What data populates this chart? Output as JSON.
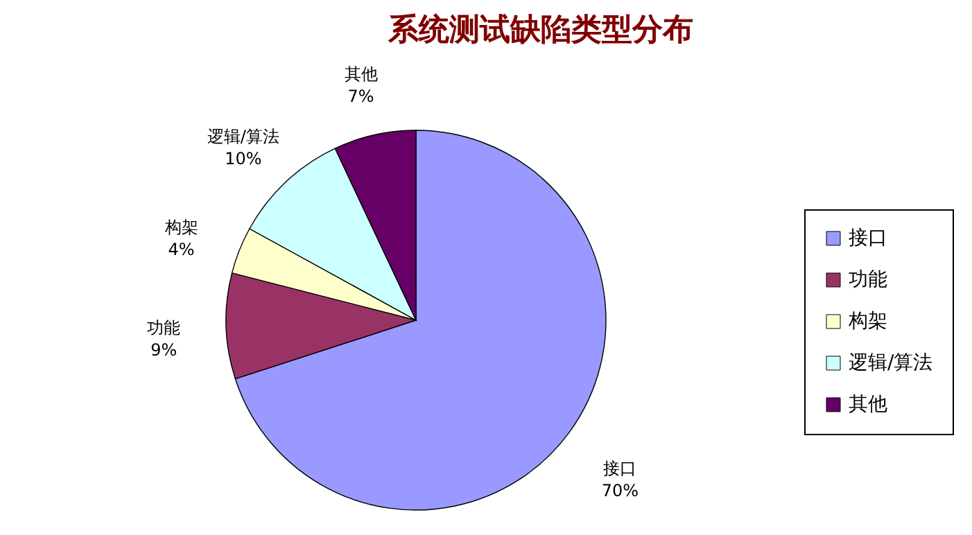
{
  "chart_data": {
    "type": "pie",
    "title": "系统测试缺陷类型分布",
    "categories": [
      "接口",
      "功能",
      "构架",
      "逻辑/算法",
      "其他"
    ],
    "values": [
      70,
      9,
      4,
      10,
      7
    ],
    "value_labels": [
      "70%",
      "9%",
      "4%",
      "10%",
      "7%"
    ],
    "colors": [
      "#9999ff",
      "#993366",
      "#ffffcc",
      "#ccffff",
      "#660066"
    ],
    "legend": "right"
  }
}
